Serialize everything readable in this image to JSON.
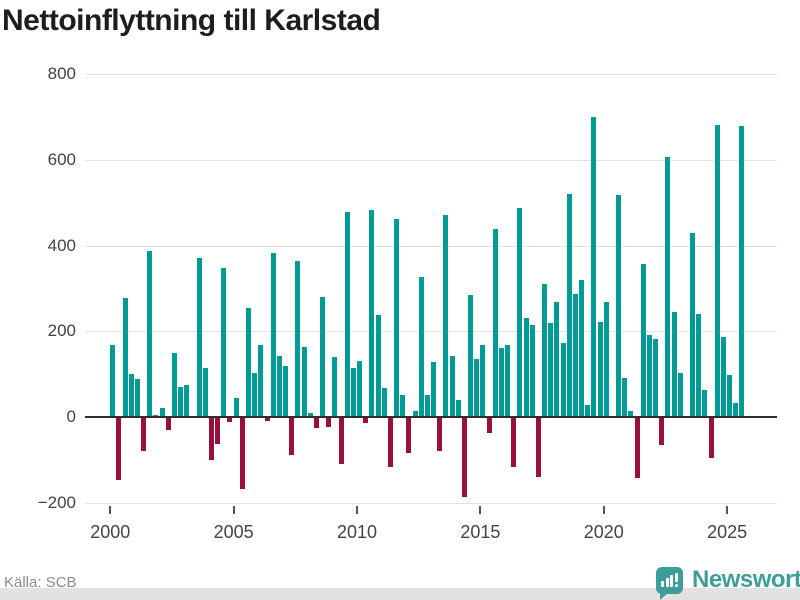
{
  "title": "Nettoinflyttning till Karlstad",
  "source": "Källa: SCB",
  "brand": {
    "name": "Newsworthy",
    "icon": "bar-chart-badge-icon"
  },
  "colors": {
    "positive_bar": "#009B94",
    "negative_bar": "#9B0E3E",
    "grid": "#e3e3e3",
    "zero_line": "#2e2e2e",
    "axis_text": "#444444",
    "title_text": "#1d1d1d",
    "source_text": "#8c8c8c",
    "brand_teal": "#3D9E99",
    "footer_band": "#e2e2e2"
  },
  "chart_data": {
    "type": "bar",
    "title": "Nettoinflyttning till Karlstad",
    "xlabel": "",
    "ylabel": "",
    "frequency": "quarterly",
    "x_start": "2000-Q1",
    "x_end": "2025-Q3",
    "ylim": [
      -200,
      800
    ],
    "grid": "horizontal",
    "legend": "none",
    "y_ticks": [
      800,
      600,
      400,
      200,
      0,
      -200
    ],
    "y_tick_labels": [
      "800",
      "600",
      "400",
      "200",
      "0",
      "−200"
    ],
    "x_tick_years": [
      2000,
      2005,
      2010,
      2015,
      2020,
      2025
    ],
    "x_tick_labels": [
      "2000",
      "2005",
      "2010",
      "2015",
      "2020",
      "2025"
    ],
    "series": [
      {
        "name": "Nettoinflyttning",
        "values": [
          165,
          -145,
          276,
          97,
          86,
          -78,
          386,
          2,
          19,
          -27,
          147,
          67,
          73,
          0,
          368,
          111,
          -98,
          -60,
          345,
          -10,
          43,
          -165,
          251,
          100,
          166,
          -8,
          381,
          140,
          116,
          -86,
          361,
          160,
          7,
          -23,
          278,
          -22,
          138,
          -108,
          476,
          112,
          129,
          -12,
          480,
          235,
          65,
          -115,
          460,
          48,
          -82,
          12,
          325,
          48,
          127,
          -78,
          470,
          140,
          38,
          -185,
          283,
          132,
          165,
          -35,
          437,
          158,
          166,
          -115,
          486,
          229,
          213,
          -137,
          307,
          217,
          265,
          170,
          518,
          285,
          318,
          25,
          697,
          220,
          265,
          0,
          515,
          88,
          12,
          -140,
          355,
          190,
          180,
          -62,
          605,
          242,
          100,
          0,
          427,
          238,
          60,
          -93,
          678,
          185,
          95,
          30,
          677
        ]
      }
    ]
  }
}
